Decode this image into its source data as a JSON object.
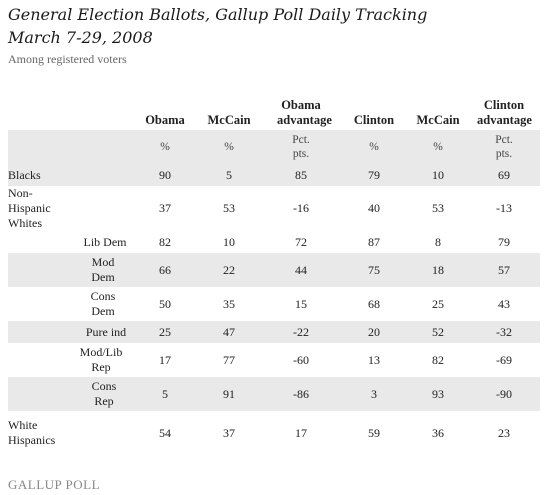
{
  "title_line1": "General Election Ballots, Gallup Poll Daily Tracking",
  "title_line2": "March 7-29, 2008",
  "subtitle": "Among registered voters",
  "logo_text": "GALLUP POLL",
  "chart_data": {
    "type": "table",
    "columns": [
      "Obama",
      "McCain",
      "Obama advantage",
      "Clinton",
      "McCain",
      "Clinton advantage"
    ],
    "units": [
      "%",
      "%",
      "Pct. pts.",
      "%",
      "%",
      "Pct. pts."
    ],
    "rows": [
      {
        "label": "Blacks",
        "values": [
          "90",
          "5",
          "85",
          "79",
          "10",
          "69"
        ]
      },
      {
        "label": "Non-Hispanic Whites",
        "values": [
          "37",
          "53",
          "-16",
          "40",
          "53",
          "-13"
        ]
      },
      {
        "label": "Lib Dem",
        "values": [
          "82",
          "10",
          "72",
          "87",
          "8",
          "79"
        ]
      },
      {
        "label": "Mod Dem",
        "values": [
          "66",
          "22",
          "44",
          "75",
          "18",
          "57"
        ]
      },
      {
        "label": "Cons Dem",
        "values": [
          "50",
          "35",
          "15",
          "68",
          "25",
          "43"
        ]
      },
      {
        "label": "Pure ind",
        "values": [
          "25",
          "47",
          "-22",
          "20",
          "52",
          "-32"
        ]
      },
      {
        "label": "Mod/Lib Rep",
        "values": [
          "17",
          "77",
          "-60",
          "13",
          "82",
          "-69"
        ]
      },
      {
        "label": "Cons Rep",
        "values": [
          "5",
          "91",
          "-86",
          "3",
          "93",
          "-90"
        ]
      },
      {
        "label": "White Hispanics",
        "values": [
          "54",
          "37",
          "17",
          "59",
          "36",
          "23"
        ]
      }
    ]
  }
}
